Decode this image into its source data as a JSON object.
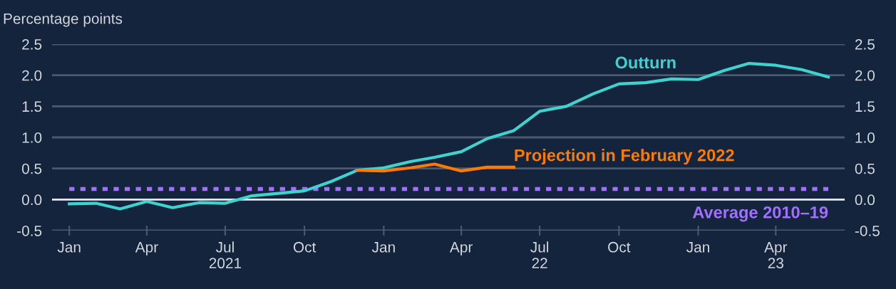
{
  "chart_data": {
    "type": "line",
    "ylabel": "Percentage points",
    "x": [
      "2021-01",
      "2021-02",
      "2021-03",
      "2021-04",
      "2021-05",
      "2021-06",
      "2021-07",
      "2021-08",
      "2021-09",
      "2021-10",
      "2021-11",
      "2021-12",
      "2022-01",
      "2022-02",
      "2022-03",
      "2022-04",
      "2022-05",
      "2022-06",
      "2022-07",
      "2022-08",
      "2022-09",
      "2022-10",
      "2022-11",
      "2022-12",
      "2023-01",
      "2023-02",
      "2023-03",
      "2023-04",
      "2023-05",
      "2023-06"
    ],
    "series": [
      {
        "name": "Outturn",
        "color": "#3fd3d0",
        "values": [
          -0.07,
          -0.06,
          -0.15,
          -0.03,
          -0.13,
          -0.05,
          -0.06,
          0.06,
          0.1,
          0.14,
          0.29,
          0.47,
          0.51,
          0.61,
          0.68,
          0.77,
          0.98,
          1.11,
          1.42,
          1.5,
          1.7,
          1.86,
          1.88,
          1.94,
          1.93,
          2.08,
          2.19,
          2.16,
          2.09,
          1.97
        ]
      },
      {
        "name": "Projection in February 2022",
        "color": "#ff7b00",
        "x": [
          "2021-12",
          "2022-01",
          "2022-02",
          "2022-03",
          "2022-04",
          "2022-05",
          "2022-06"
        ],
        "values": [
          0.47,
          0.46,
          0.51,
          0.57,
          0.46,
          0.52,
          0.52
        ]
      }
    ],
    "ref_lines": [
      {
        "axis": "y",
        "value": 0.17,
        "label": "Average 2010–19",
        "color": "#a070ff",
        "line_style": "dotted"
      },
      {
        "axis": "y",
        "value": 0,
        "color": "#e6e6e6",
        "line_style": "solid"
      }
    ],
    "xlim": [
      "2020-12-12",
      "2023-06-20"
    ],
    "xticks": [
      {
        "value": "2021-01",
        "label": "Jan"
      },
      {
        "value": "2021-04",
        "label": "Apr"
      },
      {
        "value": "2021-07",
        "label": "Jul\n2021"
      },
      {
        "value": "2021-10",
        "label": "Oct"
      },
      {
        "value": "2022-01",
        "label": "Jan"
      },
      {
        "value": "2022-04",
        "label": "Apr"
      },
      {
        "value": "2022-07",
        "label": "Jul\n22"
      },
      {
        "value": "2022-10",
        "label": "Oct"
      },
      {
        "value": "2023-01",
        "label": "Jan"
      },
      {
        "value": "2023-04",
        "label": "Apr\n23"
      }
    ],
    "ylim": [
      -0.5,
      2.5
    ],
    "yticks": [
      {
        "value": -0.5,
        "label": "-0.5"
      },
      {
        "value": 0,
        "label": "0.0"
      },
      {
        "value": 0.5,
        "label": "0.5"
      },
      {
        "value": 1,
        "label": "1.0"
      },
      {
        "value": 1.5,
        "label": "1.5"
      },
      {
        "value": 2,
        "label": "2.0"
      },
      {
        "value": 2.5,
        "label": "2.5"
      }
    ],
    "y2lim": [
      -0.5,
      2.5
    ],
    "y2ticks": [
      {
        "value": -0.5,
        "label": "-0.5"
      },
      {
        "value": 0,
        "label": "0.0"
      },
      {
        "value": 0.5,
        "label": "0.5"
      },
      {
        "value": 1,
        "label": "1.0"
      },
      {
        "value": 1.5,
        "label": "1.5"
      },
      {
        "value": 2,
        "label": "2.0"
      },
      {
        "value": 2.5,
        "label": "2.5"
      }
    ],
    "grid": "y",
    "legend": false,
    "marker": "none",
    "line_style": "solid"
  }
}
